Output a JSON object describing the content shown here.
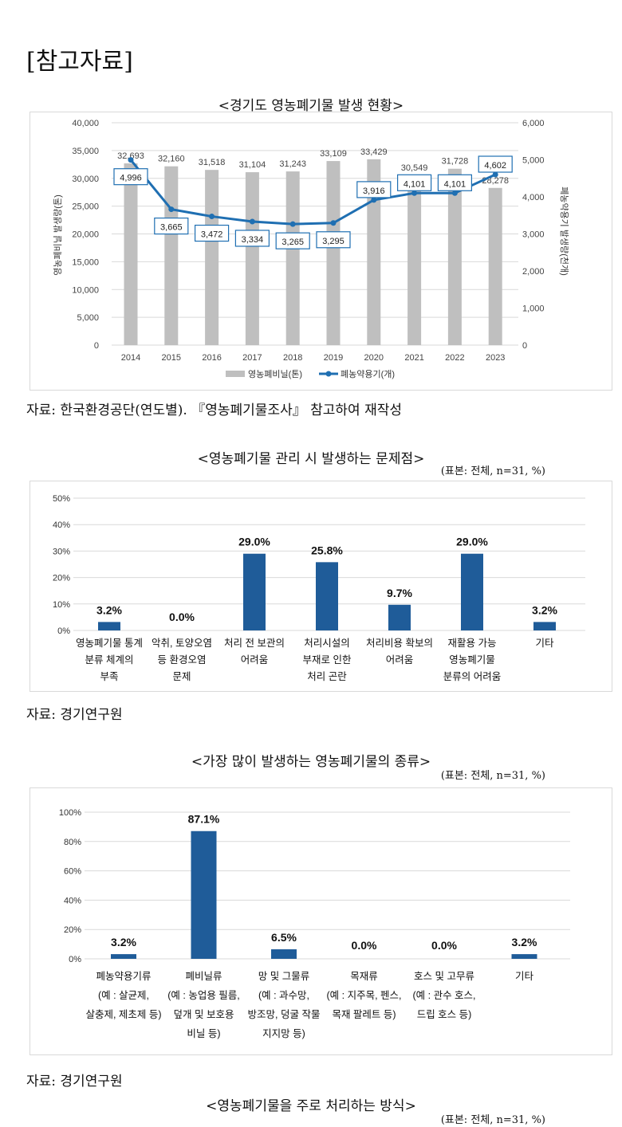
{
  "header": {
    "title": "[참고자료]"
  },
  "colors": {
    "bar_gray": "#bfbfbf",
    "line_blue": "#1f6fb2",
    "bar_blue": "#1f5c99",
    "grid": "#d9d9d9"
  },
  "chart_data": [
    {
      "type": "bar+line",
      "title": "<경기도 영농폐기물 발생 현황>",
      "categories": [
        "2014",
        "2015",
        "2016",
        "2017",
        "2018",
        "2019",
        "2020",
        "2021",
        "2022",
        "2023"
      ],
      "series": [
        {
          "name": "영농폐비닐(톤)",
          "type": "bar",
          "axis": "left",
          "values": [
            32693,
            32160,
            31518,
            31104,
            31243,
            33109,
            33429,
            30549,
            31728,
            28278
          ],
          "labels": [
            "32,693",
            "32,160",
            "31,518",
            "31,104",
            "31,243",
            "33,109",
            "33,429",
            "30,549",
            "31,728",
            "28,278"
          ]
        },
        {
          "name": "폐농약용기(개)",
          "type": "line",
          "axis": "right",
          "values": [
            4996,
            3665,
            3472,
            3334,
            3265,
            3295,
            3916,
            4101,
            4101,
            4602
          ],
          "labels": [
            "4,996",
            "3,665",
            "3,472",
            "3,334",
            "3,265",
            "3,295",
            "3,916",
            "4,101",
            "4,101",
            "4,602"
          ]
        }
      ],
      "ylabel": "영농폐비닐 발생량(톤)",
      "y2label": "폐농약용기 발생량(천개)",
      "ylim": [
        0,
        40000
      ],
      "y2lim": [
        0,
        6000
      ],
      "yticks": [
        "0",
        "5,000",
        "10,000",
        "15,000",
        "20,000",
        "25,000",
        "30,000",
        "35,000",
        "40,000"
      ],
      "y2ticks": [
        "0",
        "1,000",
        "2,000",
        "3,000",
        "4,000",
        "5,000",
        "6,000"
      ],
      "legend": "bottom",
      "grid": true,
      "source": "자료: 한국환경공단(연도별). 『영농폐기물조사』 참고하여 재작성"
    },
    {
      "type": "bar",
      "title": "<영농폐기물 관리 시 발생하는 문제점>",
      "note": "(표본: 전체, n=31, %)",
      "categories": [
        [
          "영농폐기물 통계",
          "분류 체계의",
          "부족"
        ],
        [
          "악취, 토양오염",
          "등 환경오염",
          "문제"
        ],
        [
          "처리 전 보관의",
          "어려움"
        ],
        [
          "처리시설의",
          "부재로 인한",
          "처리 곤란"
        ],
        [
          "처리비용 확보의",
          "어려움"
        ],
        [
          "재활용 가능",
          "영농폐기물",
          "분류의 어려움"
        ],
        [
          "기타"
        ]
      ],
      "values": [
        3.2,
        0.0,
        29.0,
        25.8,
        9.7,
        29.0,
        3.2
      ],
      "labels": [
        "3.2%",
        "0.0%",
        "29.0%",
        "25.8%",
        "9.7%",
        "29.0%",
        "3.2%"
      ],
      "ylim": [
        0,
        50
      ],
      "yticks": [
        "0%",
        "10%",
        "20%",
        "30%",
        "40%",
        "50%"
      ],
      "grid": true,
      "source": "자료: 경기연구원"
    },
    {
      "type": "bar",
      "title": "<가장 많이 발생하는 영농폐기물의 종류>",
      "note": "(표본: 전체, n=31, %)",
      "categories": [
        [
          "폐농약용기류",
          "(예 : 살균제,",
          "살충제, 제초제 등)"
        ],
        [
          "폐비닐류",
          "(예 : 농업용 필름,",
          "덮개 및 보호용",
          "비닐 등)"
        ],
        [
          "망 및 그물류",
          "(예 : 과수망,",
          "방조망, 덩굴 작물",
          "지지망 등)"
        ],
        [
          "목재류",
          "(예 : 지주목, 펜스,",
          "목재 팔레트 등)"
        ],
        [
          "호스 및 고무류",
          "(예 : 관수 호스,",
          "드립 호스 등)"
        ],
        [
          "기타"
        ]
      ],
      "values": [
        3.2,
        87.1,
        6.5,
        0.0,
        0.0,
        3.2
      ],
      "labels": [
        "3.2%",
        "87.1%",
        "6.5%",
        "0.0%",
        "0.0%",
        "3.2%"
      ],
      "ylim": [
        0,
        100
      ],
      "yticks": [
        "0%",
        "20%",
        "40%",
        "60%",
        "80%",
        "100%"
      ],
      "grid": true,
      "source": "자료: 경기연구원"
    },
    {
      "title": "<영농폐기물을 주로 처리하는 방식>",
      "note": "(표본: 전체, n=31, %)"
    }
  ]
}
